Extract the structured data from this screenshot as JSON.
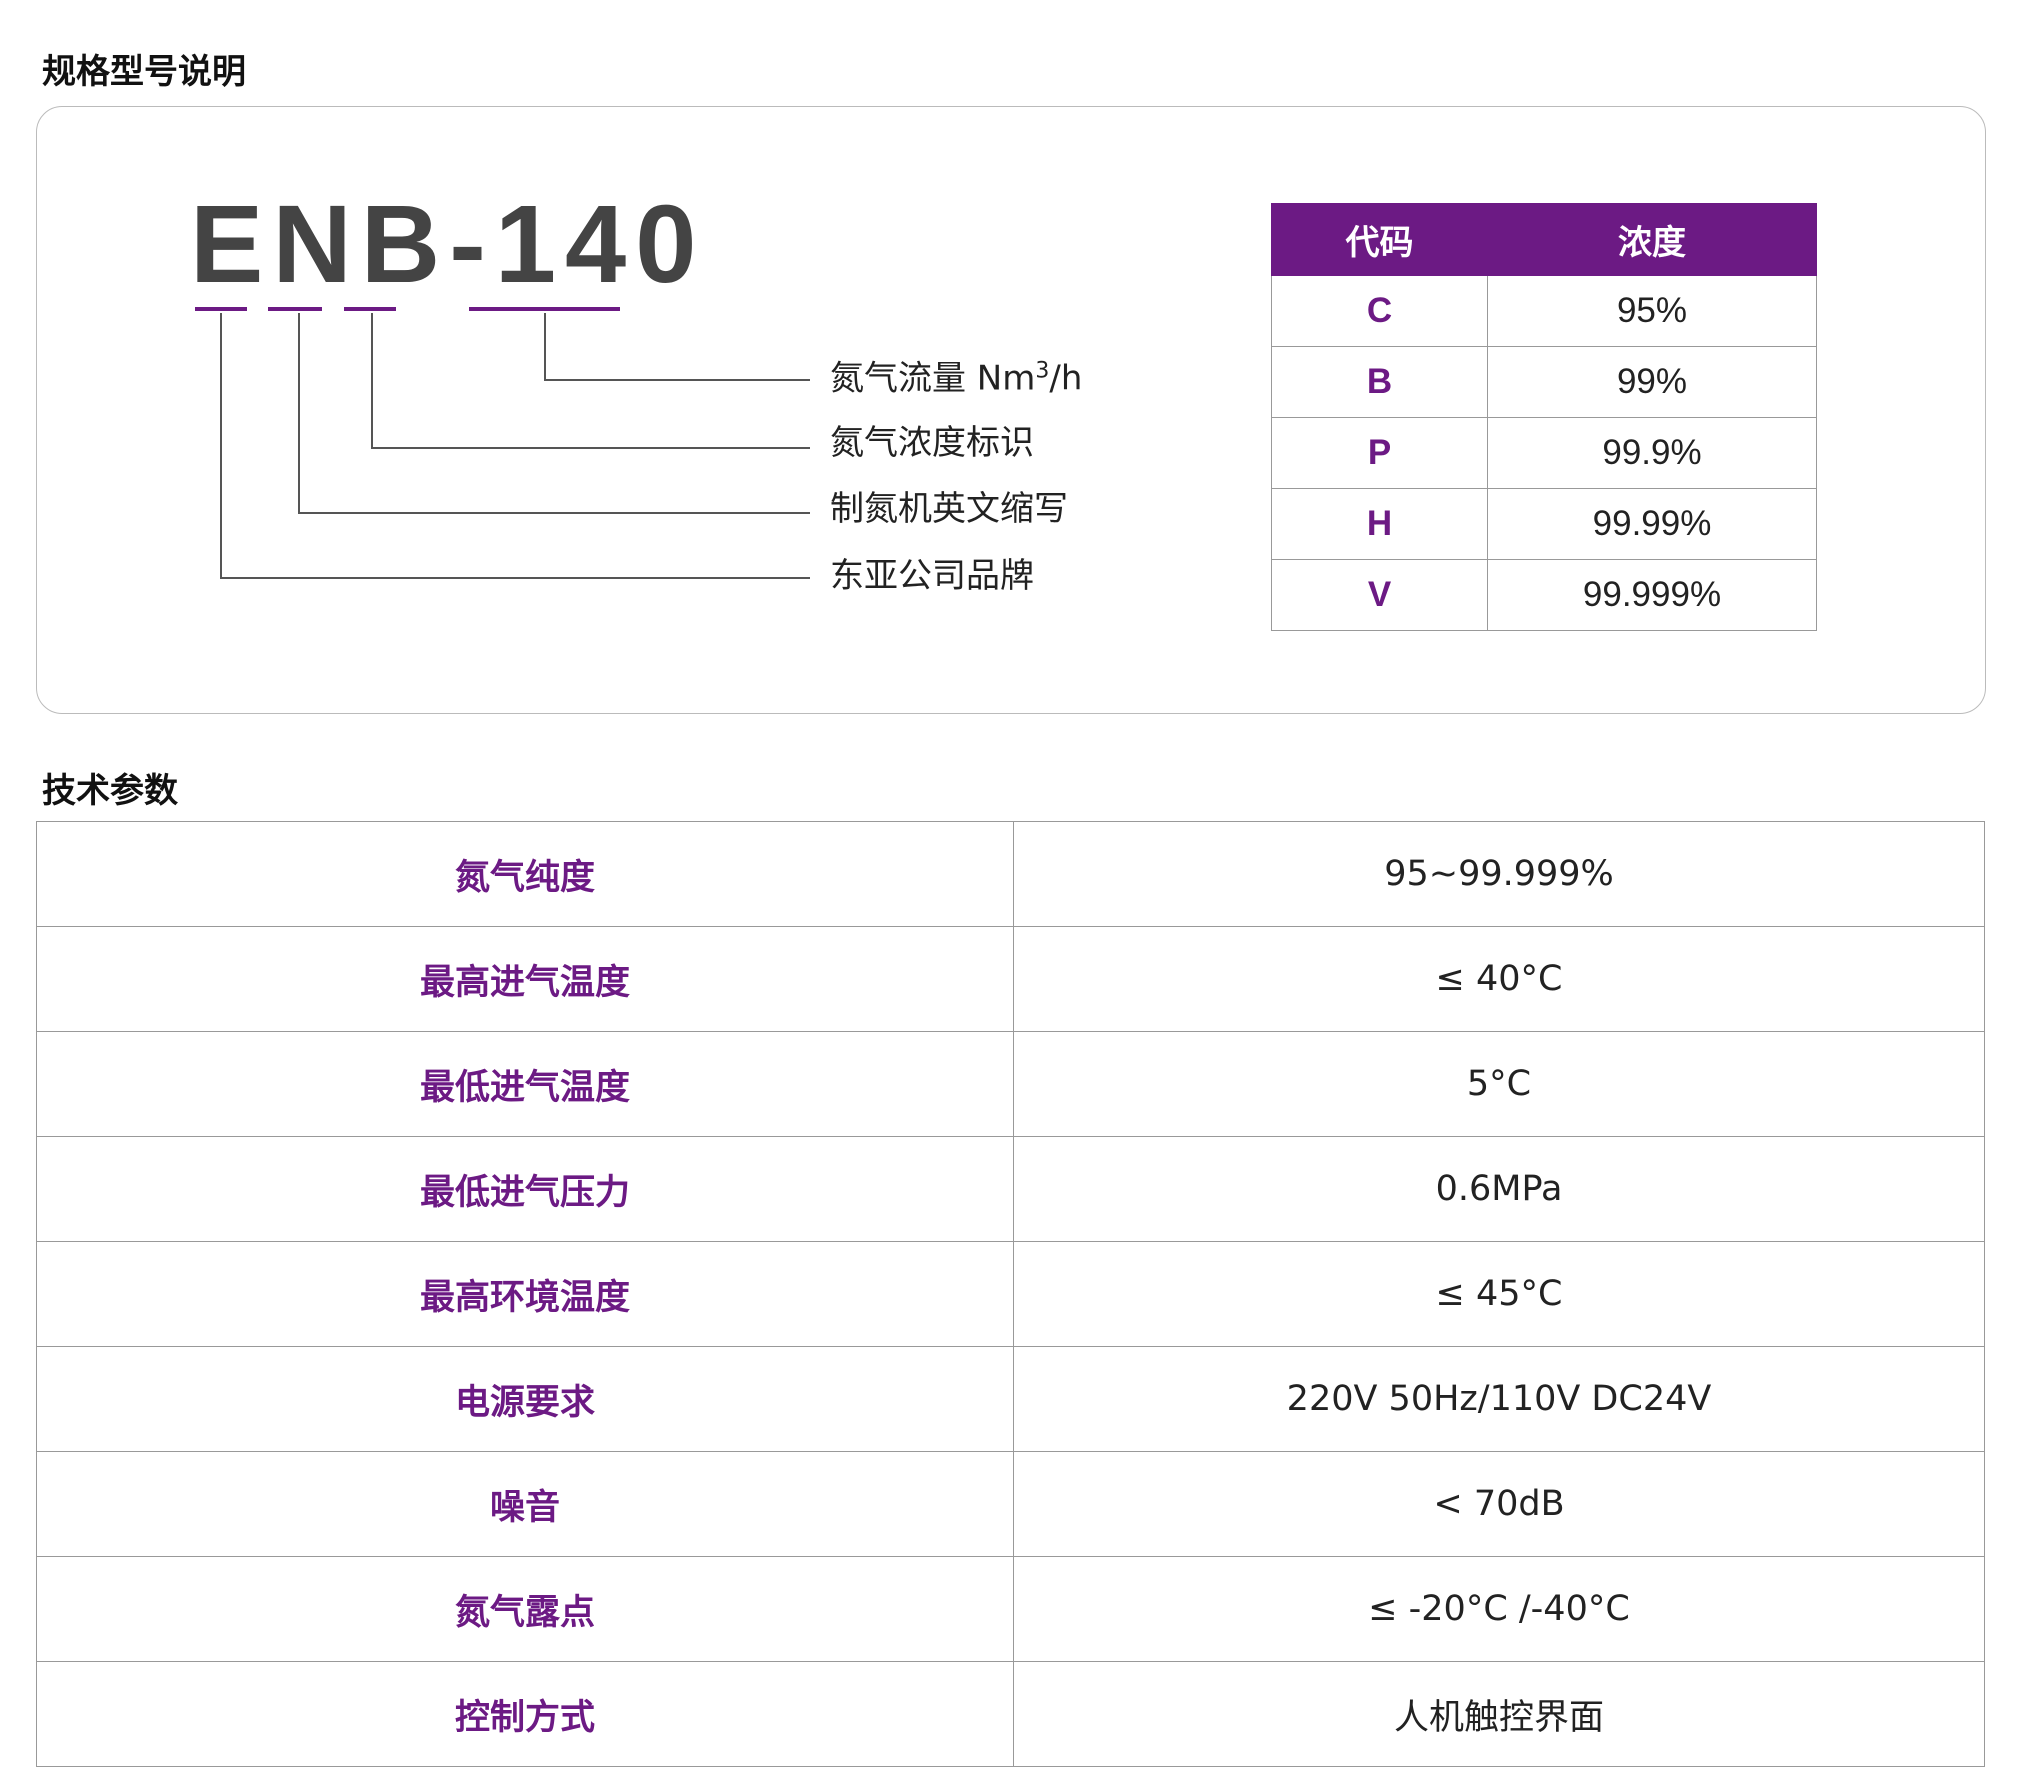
{
  "section1_title": "规格型号说明",
  "model": {
    "code": "ENB-140",
    "parts": [
      {
        "label": "氮气流量 Nm",
        "sup": "3",
        "suffix": "/h"
      },
      {
        "label": "氮气浓度标识"
      },
      {
        "label": "制氮机英文缩写"
      },
      {
        "label": "东亚公司品牌"
      }
    ]
  },
  "purity_table": {
    "headers": [
      "代码",
      "浓度"
    ],
    "rows": [
      {
        "code": "C",
        "value": "95%"
      },
      {
        "code": "B",
        "value": "99%"
      },
      {
        "code": "P",
        "value": "99.9%"
      },
      {
        "code": "H",
        "value": "99.99%"
      },
      {
        "code": "V",
        "value": "99.999%"
      }
    ]
  },
  "section2_title": "技术参数",
  "params": [
    {
      "name": "氮气纯度",
      "value": "95~99.999%"
    },
    {
      "name": "最高进气温度",
      "value": "≤ 40°C"
    },
    {
      "name": "最低进气温度",
      "value": "5°C"
    },
    {
      "name": "最低进气压力",
      "value": "0.6MPa"
    },
    {
      "name": "最高环境温度",
      "value": "≤ 45°C"
    },
    {
      "name": "电源要求",
      "value": "220V  50Hz/110V DC24V"
    },
    {
      "name": "噪音",
      "value": "< 70dB"
    },
    {
      "name": "氮气露点",
      "value": "≤ -20°C /-40°C"
    },
    {
      "name": "控制方式",
      "value": "人机触控界面"
    }
  ],
  "colors": {
    "accent": "#6c1a84",
    "model_text": "#444444"
  }
}
